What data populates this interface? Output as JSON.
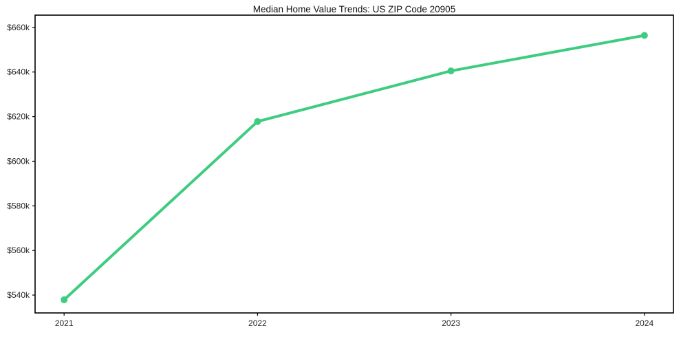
{
  "chart_data": {
    "type": "line",
    "title": "Median Home Value Trends: US ZIP Code 20905",
    "categories": [
      "2021",
      "2022",
      "2023",
      "2024"
    ],
    "values": [
      537900,
      617800,
      640500,
      656400
    ],
    "xlabel": "",
    "ylabel": "",
    "ylim": [
      532000,
      665500
    ],
    "y_ticks": [
      540000,
      560000,
      580000,
      600000,
      620000,
      640000,
      660000
    ],
    "y_tick_labels": [
      "$540k",
      "$560k",
      "$580k",
      "$600k",
      "$620k",
      "$640k",
      "$660k"
    ],
    "grid": false,
    "legend": false,
    "marker": "circle",
    "line_color": "#3ecc80",
    "marker_color": "#3ecc80",
    "spine_color": "#000000",
    "text_color": "#262626",
    "background_color": "#ffffff"
  }
}
